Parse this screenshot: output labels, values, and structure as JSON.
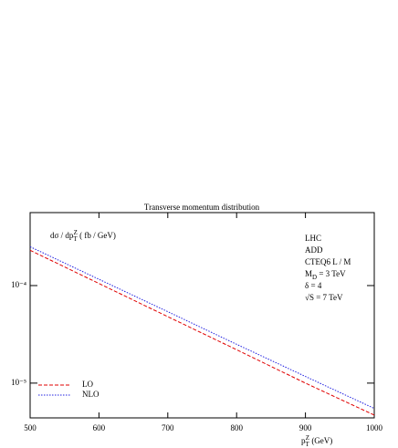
{
  "chart_data": {
    "type": "line",
    "title": "Transverse momentum distribution",
    "ylabel": {
      "text": "dσ / dp",
      "sub": "T",
      "sup": "Z",
      "unit": " ( fb / GeV)"
    },
    "xlabel": {
      "text": "p",
      "sub": "T",
      "sup": "Z",
      "unit": " (GeV)"
    },
    "annotations": [
      {
        "text": "LHC"
      },
      {
        "text": "ADD"
      },
      {
        "text": "CTEQ6 L / M"
      },
      {
        "text": "M",
        "sub": "D",
        "rest": " = 3 TeV"
      },
      {
        "text": "δ = 4"
      },
      {
        "text": "√S = 7 TeV"
      }
    ],
    "x": [
      500,
      600,
      700,
      800,
      900,
      1000
    ],
    "series": [
      {
        "name": "LO",
        "color": "#e00000",
        "dash": "dashed",
        "values": [
          0.00023,
          0.000105,
          4.8e-05,
          2.2e-05,
          1e-05,
          4.7e-06
        ]
      },
      {
        "name": "NLO",
        "color": "#2020e0",
        "dash": "dotted",
        "values": [
          0.00025,
          0.000116,
          5.4e-05,
          2.5e-05,
          1.17e-05,
          5.5e-06
        ]
      }
    ],
    "xlim": [
      500,
      1000
    ],
    "xticks": [
      500,
      600,
      700,
      800,
      900,
      1000
    ],
    "ylim": [
      4.4e-06,
      0.00056
    ],
    "yticks": [
      {
        "value": 0.0001,
        "label": "10⁻⁴"
      },
      {
        "value": 1e-05,
        "label": "10⁻⁵"
      }
    ],
    "log_y": true,
    "legend": "lower-left"
  }
}
